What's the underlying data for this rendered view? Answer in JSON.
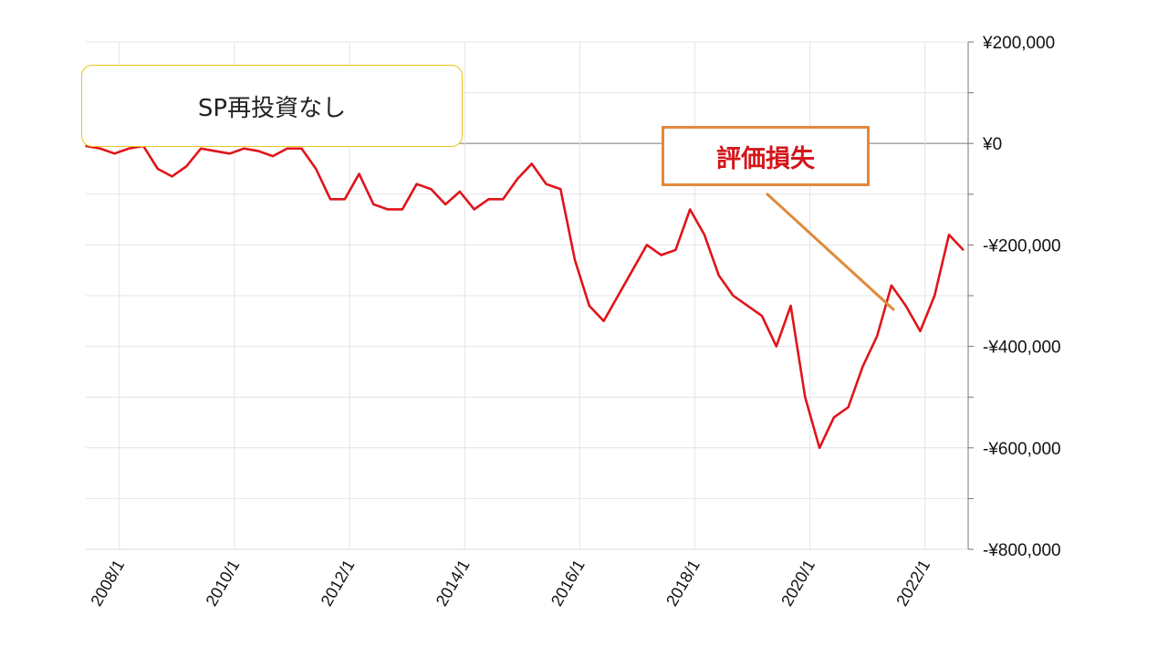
{
  "title_box": {
    "text": "SP再投資なし"
  },
  "annotation": {
    "text": "評価損失"
  },
  "chart_data": {
    "type": "line",
    "title": "SP再投資なし",
    "xlabel": "",
    "ylabel": "",
    "x_tick_labels": [
      "2008/1",
      "2010/1",
      "2012/1",
      "2014/1",
      "2016/1",
      "2018/1",
      "2020/1",
      "2022/1"
    ],
    "y_tick_labels": [
      "¥200,000",
      "¥0",
      "-¥200,000",
      "-¥400,000",
      "-¥600,000",
      "-¥800,000"
    ],
    "y_ticks": [
      200000,
      0,
      -200000,
      -400000,
      -600000,
      -800000
    ],
    "ylim": [
      -800000,
      200000
    ],
    "xlim": [
      "2007/6",
      "2022/10"
    ],
    "y_axis_position": "right",
    "grid": true,
    "line_color": "#e0141a",
    "series": [
      {
        "x": [
          "2007/6",
          "2007/9",
          "2007/12",
          "2008/3",
          "2008/6",
          "2008/9",
          "2008/12",
          "2009/3",
          "2009/6",
          "2009/9",
          "2009/12",
          "2010/3",
          "2010/6",
          "2010/9",
          "2010/12",
          "2011/3",
          "2011/6",
          "2011/9",
          "2011/12",
          "2012/3",
          "2012/6",
          "2012/9",
          "2012/12",
          "2013/3",
          "2013/6",
          "2013/9",
          "2013/12",
          "2014/3",
          "2014/6",
          "2014/9",
          "2014/12",
          "2015/3",
          "2015/6",
          "2015/9",
          "2015/12",
          "2016/3",
          "2016/6",
          "2016/9",
          "2016/12",
          "2017/3",
          "2017/6",
          "2017/9",
          "2017/12",
          "2018/3",
          "2018/6",
          "2018/9",
          "2018/12",
          "2019/3",
          "2019/6",
          "2019/9",
          "2019/12",
          "2020/3",
          "2020/6",
          "2020/9",
          "2020/12",
          "2021/3",
          "2021/6",
          "2021/9",
          "2021/12",
          "2022/3",
          "2022/6",
          "2022/9"
        ],
        "values": [
          -5000,
          -10000,
          -20000,
          -10000,
          -5000,
          -50000,
          -65000,
          -45000,
          -10000,
          -15000,
          -20000,
          -10000,
          -15000,
          -25000,
          -10000,
          -10000,
          -50000,
          -110000,
          -110000,
          -60000,
          -120000,
          -130000,
          -130000,
          -80000,
          -90000,
          -120000,
          -95000,
          -130000,
          -110000,
          -110000,
          -70000,
          -40000,
          -80000,
          -90000,
          -230000,
          -320000,
          -350000,
          -300000,
          -250000,
          -200000,
          -220000,
          -210000,
          -130000,
          -180000,
          -260000,
          -300000,
          -320000,
          -340000,
          -400000,
          -320000,
          -500000,
          -600000,
          -540000,
          -520000,
          -440000,
          -380000,
          -280000,
          -320000,
          -370000,
          -300000,
          -180000,
          -210000
        ]
      }
    ]
  }
}
